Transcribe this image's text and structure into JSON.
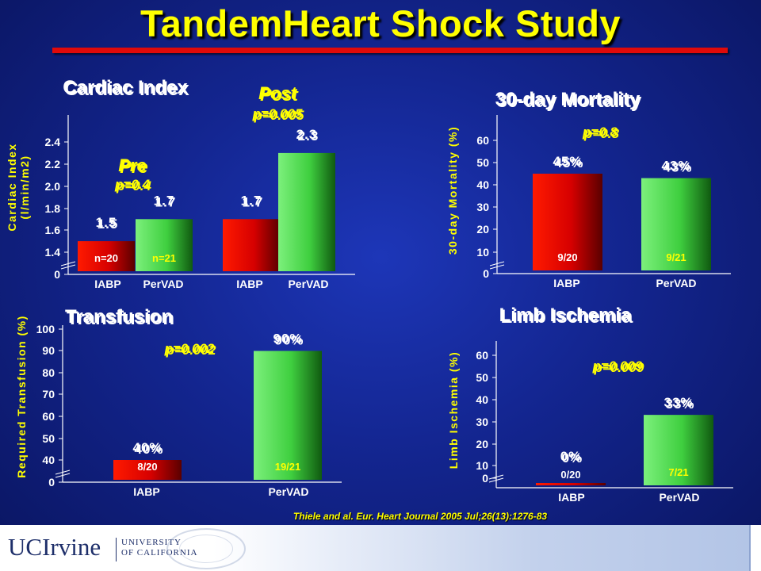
{
  "slide_title": "TandemHeart Shock Study",
  "citation": "Thiele and al. Eur. Heart Journal 2005 Jul;26(13):1276-83",
  "footer": {
    "logo": "UCIrvine",
    "university_line1": "UNIVERSITY",
    "university_line2": "OF CALIFORNIA"
  },
  "colors": {
    "title": "#ffff00",
    "rule": "#e00a0a",
    "iabp_bar": "#e00000",
    "pervad_bar": "#4cd64c",
    "background": "#13258f"
  },
  "chart_data": [
    {
      "type": "bar",
      "title": "Cardiac Index",
      "ylabel": "Cardiac Index",
      "ylabel_unit": "(l/min/m2)",
      "axis_break": true,
      "yticks": [
        "0",
        "1.4",
        "1.6",
        "1.8",
        "2.0",
        "2.2",
        "2.4"
      ],
      "ylim": [
        1.3,
        2.5
      ],
      "categories": [
        "IABP",
        "PerVAD",
        "IABP",
        "PerVAD"
      ],
      "values": [
        1.5,
        1.7,
        1.7,
        2.3
      ],
      "value_labels": [
        "1.5",
        "1.7",
        "1.7",
        "2.3"
      ],
      "bar_labels": [
        "n=20",
        "n=21",
        "",
        ""
      ],
      "groups": [
        {
          "name": "Pre",
          "p_value": "p=0.4"
        },
        {
          "name": "Post",
          "p_value": "p=0.005"
        }
      ]
    },
    {
      "type": "bar",
      "title": "30-day Mortality",
      "ylabel": "30-day Mortality (%)",
      "axis_break": true,
      "yticks": [
        "0",
        "10",
        "20",
        "30",
        "40",
        "50",
        "60"
      ],
      "ylim": [
        0,
        65
      ],
      "categories": [
        "IABP",
        "PerVAD"
      ],
      "values": [
        45,
        43
      ],
      "value_labels": [
        "45%",
        "43%"
      ],
      "bar_labels": [
        "9/20",
        "9/21"
      ],
      "p_value": "p=0.8"
    },
    {
      "type": "bar",
      "title": "Transfusion",
      "ylabel": "Required Transfusion (%)",
      "axis_break": true,
      "yticks": [
        "0",
        "40",
        "50",
        "60",
        "70",
        "80",
        "90",
        "100"
      ],
      "ylim": [
        35,
        100
      ],
      "categories": [
        "IABP",
        "PerVAD"
      ],
      "values": [
        40,
        90
      ],
      "value_labels": [
        "40%",
        "90%"
      ],
      "bar_labels": [
        "8/20",
        "19/21"
      ],
      "p_value": "p=0.002"
    },
    {
      "type": "bar",
      "title": "Limb Ischemia",
      "ylabel": "Limb Ischemia (%)",
      "axis_break": true,
      "yticks": [
        "0",
        "10",
        "20",
        "30",
        "40",
        "50",
        "60"
      ],
      "ylim": [
        0,
        65
      ],
      "categories": [
        "IABP",
        "PerVAD"
      ],
      "values": [
        0,
        33
      ],
      "value_labels": [
        "0%",
        "33%"
      ],
      "bar_labels": [
        "0/20",
        "7/21"
      ],
      "p_value": "p=0.009"
    }
  ]
}
